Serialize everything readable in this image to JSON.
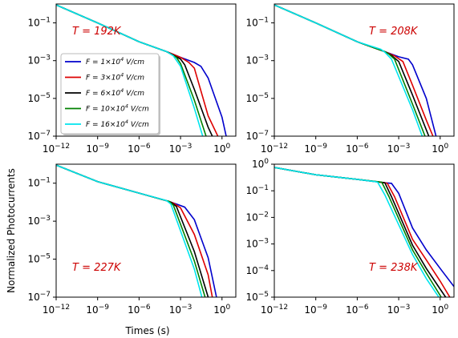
{
  "labels": {
    "ylabel": "Normalized Photocurrents",
    "xlabel": "Times (s)"
  },
  "chart_data": [
    {
      "type": "line",
      "annotation": "T = 192K",
      "xscale": "log",
      "yscale": "log",
      "xlim": [
        1e-12,
        10
      ],
      "ylim": [
        1e-07,
        1
      ],
      "xticks": [
        "10^-12",
        "10^-9",
        "10^-6",
        "10^-3",
        "10^0"
      ],
      "yticks": [
        "10^-7",
        "10^-5",
        "10^-3",
        "10^-1"
      ],
      "legend": "center-left",
      "series": [
        {
          "name": "F = 1×10^4 V/cm",
          "color": "#0000cc",
          "x": [
            1e-12,
            1e-09,
            1e-06,
            0.0001,
            0.001,
            0.01,
            0.03,
            0.1,
            1,
            2
          ],
          "y": [
            0.9,
            0.1,
            0.01,
            0.003,
            0.0015,
            0.0008,
            0.0005,
            0.00012,
            1e-06,
            1e-07
          ]
        },
        {
          "name": "F = 3×10^4 V/cm",
          "color": "#dd0000",
          "x": [
            1e-12,
            1e-09,
            1e-06,
            0.0001,
            0.001,
            0.004,
            0.01,
            0.1,
            0.5
          ],
          "y": [
            0.9,
            0.1,
            0.01,
            0.003,
            0.0015,
            0.0008,
            0.0004,
            1.2e-06,
            1e-07
          ]
        },
        {
          "name": "F = 6×10^4 V/cm",
          "color": "#000000",
          "x": [
            1e-12,
            1e-09,
            1e-06,
            0.0001,
            0.001,
            0.002,
            0.01,
            0.1,
            0.2
          ],
          "y": [
            0.9,
            0.1,
            0.01,
            0.003,
            0.0012,
            0.0006,
            3e-05,
            3e-07,
            1e-07
          ]
        },
        {
          "name": "F = 10×10^4 V/cm",
          "color": "#008000",
          "x": [
            1e-12,
            1e-09,
            1e-06,
            0.0001,
            0.0005,
            0.001,
            0.01,
            0.07
          ],
          "y": [
            0.9,
            0.1,
            0.01,
            0.003,
            0.0015,
            0.0007,
            8e-06,
            1e-07
          ]
        },
        {
          "name": "F = 16×10^4 V/cm",
          "color": "#00e5ee",
          "x": [
            1e-12,
            1e-09,
            1e-06,
            0.0001,
            0.0003,
            0.001,
            0.01,
            0.04
          ],
          "y": [
            0.9,
            0.1,
            0.01,
            0.003,
            0.0018,
            0.0005,
            3e-06,
            1e-07
          ]
        }
      ]
    },
    {
      "type": "line",
      "annotation": "T = 208K",
      "xscale": "log",
      "yscale": "log",
      "xlim": [
        1e-12,
        10
      ],
      "ylim": [
        1e-07,
        1
      ],
      "xticks": [
        "10^-12",
        "10^-9",
        "10^-6",
        "10^-3",
        "10^0"
      ],
      "yticks": [
        "10^-7",
        "10^-5",
        "10^-3",
        "10^-1"
      ],
      "series": [
        {
          "name": "F = 1×10^4 V/cm",
          "color": "#0000cc",
          "x": [
            1e-12,
            1e-09,
            1e-06,
            0.0001,
            0.001,
            0.005,
            0.01,
            0.1,
            0.5
          ],
          "y": [
            0.9,
            0.1,
            0.01,
            0.003,
            0.0016,
            0.0012,
            0.0006,
            1e-05,
            1e-07
          ]
        },
        {
          "name": "F = 3×10^4 V/cm",
          "color": "#dd0000",
          "x": [
            1e-12,
            1e-09,
            1e-06,
            0.0001,
            0.0005,
            0.002,
            0.01,
            0.1,
            0.3
          ],
          "y": [
            0.9,
            0.1,
            0.01,
            0.003,
            0.0018,
            0.0009,
            5e-05,
            7e-07,
            1e-07
          ]
        },
        {
          "name": "F = 6×10^4 V/cm",
          "color": "#000000",
          "x": [
            1e-12,
            1e-09,
            1e-06,
            0.0001,
            0.0003,
            0.001,
            0.01,
            0.15
          ],
          "y": [
            0.9,
            0.1,
            0.01,
            0.003,
            0.0019,
            0.0009,
            1.5e-05,
            1e-07
          ]
        },
        {
          "name": "F = 10×10^4 V/cm",
          "color": "#008000",
          "x": [
            1e-12,
            1e-09,
            1e-06,
            0.0001,
            0.0002,
            0.0005,
            0.01,
            0.08
          ],
          "y": [
            0.9,
            0.1,
            0.01,
            0.003,
            0.0022,
            0.0012,
            5e-06,
            1e-07
          ]
        },
        {
          "name": "F = 16×10^4 V/cm",
          "color": "#00e5ee",
          "x": [
            1e-12,
            1e-09,
            1e-06,
            5e-05,
            0.0001,
            0.0003,
            0.01,
            0.05
          ],
          "y": [
            0.9,
            0.1,
            0.01,
            0.004,
            0.0028,
            0.0012,
            2.5e-06,
            1e-07
          ]
        }
      ]
    },
    {
      "type": "line",
      "annotation": "T = 227K",
      "xscale": "log",
      "yscale": "log",
      "xlim": [
        1e-12,
        10
      ],
      "ylim": [
        1e-07,
        1
      ],
      "xticks": [
        "10^-12",
        "10^-9",
        "10^-6",
        "10^-3",
        "10^0"
      ],
      "yticks": [
        "10^-7",
        "10^-5",
        "10^-3",
        "10^-1"
      ],
      "series": [
        {
          "name": "F = 1×10^4 V/cm",
          "color": "#0000cc",
          "x": [
            1e-12,
            1e-09,
            1e-06,
            0.0001,
            0.0005,
            0.002,
            0.01,
            0.1,
            0.4
          ],
          "y": [
            0.9,
            0.12,
            0.03,
            0.012,
            0.008,
            0.0055,
            0.0012,
            1.2e-05,
            1e-07
          ]
        },
        {
          "name": "F = 3×10^4 V/cm",
          "color": "#dd0000",
          "x": [
            1e-12,
            1e-09,
            1e-06,
            0.0001,
            0.0003,
            0.001,
            0.01,
            0.1,
            0.2
          ],
          "y": [
            0.9,
            0.12,
            0.03,
            0.012,
            0.009,
            0.005,
            0.0002,
            1.5e-06,
            1e-07
          ]
        },
        {
          "name": "F = 6×10^4 V/cm",
          "color": "#000000",
          "x": [
            1e-12,
            1e-09,
            1e-06,
            0.0001,
            0.0002,
            0.0005,
            0.01,
            0.1
          ],
          "y": [
            0.9,
            0.12,
            0.03,
            0.012,
            0.01,
            0.006,
            2.5e-05,
            1e-07
          ]
        },
        {
          "name": "F = 10×10^4 V/cm",
          "color": "#008000",
          "x": [
            1e-12,
            1e-09,
            1e-06,
            0.0001,
            0.00015,
            0.0003,
            0.01,
            0.06
          ],
          "y": [
            0.9,
            0.12,
            0.03,
            0.012,
            0.011,
            0.007,
            8e-06,
            1e-07
          ]
        },
        {
          "name": "F = 16×10^4 V/cm",
          "color": "#00e5ee",
          "x": [
            1e-12,
            1e-09,
            1e-06,
            5e-05,
            0.0001,
            0.0002,
            0.01,
            0.035
          ],
          "y": [
            0.9,
            0.12,
            0.03,
            0.014,
            0.012,
            0.008,
            3e-06,
            1e-07
          ]
        }
      ]
    },
    {
      "type": "line",
      "annotation": "T = 238K",
      "xscale": "log",
      "yscale": "log",
      "xlim": [
        1e-12,
        10
      ],
      "ylim": [
        1e-05,
        1
      ],
      "xticks": [
        "10^-12",
        "10^-9",
        "10^-6",
        "10^-3",
        "10^0"
      ],
      "yticks": [
        "10^-5",
        "10^-4",
        "10^-3",
        "10^-2",
        "10^-1",
        "10^0"
      ],
      "series": [
        {
          "name": "F = 1×10^4 V/cm",
          "color": "#0000cc",
          "x": [
            1e-12,
            1e-09,
            1e-06,
            0.0001,
            0.0003,
            0.001,
            0.01,
            0.1,
            1,
            10
          ],
          "y": [
            0.75,
            0.4,
            0.27,
            0.2,
            0.19,
            0.08,
            0.004,
            0.0006,
            0.00012,
            2.5e-05
          ]
        },
        {
          "name": "F = 3×10^4 V/cm",
          "color": "#dd0000",
          "x": [
            1e-12,
            1e-09,
            1e-06,
            0.0001,
            0.00015,
            0.0005,
            0.01,
            0.1,
            1,
            5
          ],
          "y": [
            0.75,
            0.4,
            0.27,
            0.2,
            0.19,
            0.06,
            0.0015,
            0.00025,
            4e-05,
            1e-05
          ]
        },
        {
          "name": "F = 6×10^4 V/cm",
          "color": "#000000",
          "x": [
            1e-12,
            1e-09,
            1e-06,
            5e-05,
            0.0001,
            0.0003,
            0.01,
            0.1,
            1,
            2.5
          ],
          "y": [
            0.75,
            0.4,
            0.27,
            0.21,
            0.2,
            0.06,
            0.0009,
            0.00012,
            2e-05,
            1e-05
          ]
        },
        {
          "name": "F = 10×10^4 V/cm",
          "color": "#008000",
          "x": [
            1e-12,
            1e-09,
            1e-06,
            3e-05,
            6e-05,
            0.0002,
            0.01,
            0.1,
            1.2
          ],
          "y": [
            0.75,
            0.4,
            0.27,
            0.22,
            0.21,
            0.06,
            0.0006,
            8e-05,
            1e-05
          ]
        },
        {
          "name": "F = 16×10^4 V/cm",
          "color": "#00e5ee",
          "x": [
            1e-12,
            1e-09,
            1e-06,
            2e-05,
            3e-05,
            0.0001,
            0.01,
            0.1,
            0.8
          ],
          "y": [
            0.75,
            0.4,
            0.27,
            0.22,
            0.21,
            0.07,
            0.0004,
            5e-05,
            1e-05
          ]
        }
      ]
    }
  ]
}
